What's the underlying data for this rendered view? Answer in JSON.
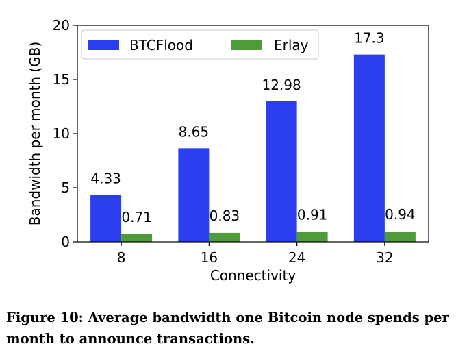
{
  "chart_data": {
    "type": "bar",
    "categories": [
      "8",
      "16",
      "24",
      "32"
    ],
    "series": [
      {
        "name": "BTCFlood",
        "values": [
          4.33,
          8.65,
          12.98,
          17.3
        ],
        "labels": [
          "4.33",
          "8.65",
          "12.98",
          "17.3"
        ],
        "color": "#2b3ff0"
      },
      {
        "name": "Erlay",
        "values": [
          0.71,
          0.83,
          0.91,
          0.94
        ],
        "labels": [
          "0.71",
          "0.83",
          "0.91",
          "0.94"
        ],
        "color": "#4f9a3a"
      }
    ],
    "xlabel": "Connectivity",
    "ylabel": "Bandwidth per month (GB)",
    "ylim": [
      0,
      20
    ],
    "yticks": [
      0,
      5,
      10,
      15,
      20
    ],
    "grid": false,
    "legend_position": "top"
  },
  "caption": "Figure 10: Average bandwidth one Bitcoin node spends per month to announce transactions."
}
